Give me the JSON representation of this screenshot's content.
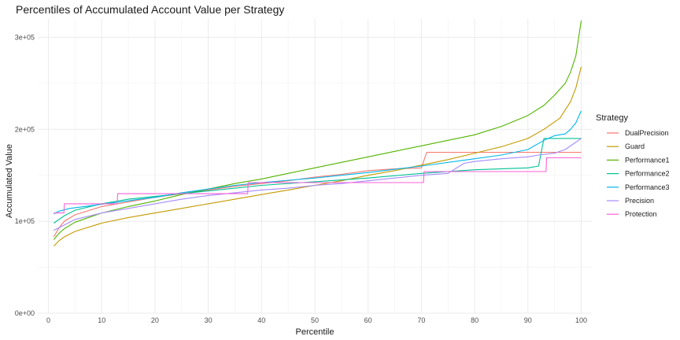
{
  "chart_data": {
    "type": "line",
    "title": "Percentiles of Accumulated Account Value per Strategy",
    "xlabel": "Percentile",
    "ylabel": "Accumulated Value",
    "xlim": [
      -2,
      102
    ],
    "ylim": [
      0,
      320000
    ],
    "x_ticks": [
      0,
      10,
      20,
      30,
      40,
      50,
      60,
      70,
      80,
      90,
      100
    ],
    "x_tick_labels": [
      "0",
      "10",
      "20",
      "30",
      "40",
      "50",
      "60",
      "70",
      "80",
      "90",
      "100"
    ],
    "y_ticks": [
      0,
      100000,
      200000,
      300000
    ],
    "y_tick_labels": [
      "0e+00",
      "1e+05",
      "2e+05",
      "3e+05"
    ],
    "grid": true,
    "legend": {
      "title": "Strategy",
      "position": "right"
    },
    "series": [
      {
        "name": "DualPrecision",
        "color": "#F8766D",
        "x": [
          1,
          2,
          3,
          5,
          10,
          15,
          20,
          25,
          30,
          35,
          40,
          45,
          50,
          55,
          60,
          65,
          70,
          71,
          80,
          90,
          100
        ],
        "y": [
          83000,
          93000,
          100000,
          107000,
          116000,
          121000,
          126000,
          130000,
          134000,
          138000,
          141000,
          144000,
          148000,
          151000,
          155000,
          157000,
          158000,
          175000,
          175000,
          175000,
          175000
        ]
      },
      {
        "name": "Guard",
        "color": "#C49A00",
        "x": [
          1,
          2,
          3,
          5,
          10,
          15,
          20,
          25,
          30,
          35,
          40,
          45,
          50,
          55,
          60,
          65,
          70,
          75,
          80,
          85,
          90,
          93,
          96,
          98,
          99,
          100
        ],
        "y": [
          73000,
          79000,
          83000,
          89000,
          98000,
          104000,
          109000,
          114000,
          119000,
          124000,
          129000,
          134000,
          139000,
          144000,
          150000,
          155000,
          161000,
          167000,
          174000,
          181000,
          190000,
          200000,
          212000,
          230000,
          245000,
          268000
        ]
      },
      {
        "name": "Performance1",
        "color": "#53B400",
        "x": [
          1,
          2,
          3,
          5,
          10,
          15,
          20,
          25,
          30,
          35,
          40,
          45,
          50,
          55,
          60,
          65,
          70,
          75,
          80,
          85,
          90,
          93,
          95,
          97,
          98,
          99,
          100
        ],
        "y": [
          80000,
          87000,
          92000,
          99000,
          109000,
          116000,
          122000,
          129000,
          135000,
          141000,
          146000,
          152000,
          158000,
          164000,
          170000,
          176000,
          182000,
          188000,
          194000,
          203000,
          215000,
          226000,
          237000,
          250000,
          262000,
          280000,
          318000
        ]
      },
      {
        "name": "Performance2",
        "color": "#00C094",
        "x": [
          1,
          3,
          5,
          10,
          15,
          20,
          25,
          30,
          35,
          40,
          50,
          60,
          70,
          80,
          90,
          92,
          93,
          94,
          100
        ],
        "y": [
          98000,
          106000,
          112000,
          119000,
          124000,
          127000,
          130000,
          133000,
          136000,
          139000,
          143000,
          147000,
          152000,
          156000,
          158000,
          160000,
          190000,
          190000,
          190000
        ]
      },
      {
        "name": "Performance3",
        "color": "#00B6EB",
        "x": [
          1,
          2,
          4,
          8,
          12,
          16,
          20,
          25,
          30,
          35,
          40,
          50,
          60,
          70,
          80,
          85,
          90,
          93,
          95,
          97,
          98,
          99,
          100
        ],
        "y": [
          108000,
          111000,
          114000,
          117000,
          120000,
          123000,
          126000,
          131000,
          135000,
          139000,
          142000,
          147000,
          153000,
          160000,
          168000,
          172000,
          178000,
          188000,
          193000,
          195000,
          200000,
          207000,
          220000
        ]
      },
      {
        "name": "Precision",
        "color": "#A58AFF",
        "x": [
          1,
          5,
          10,
          15,
          20,
          25,
          30,
          35,
          40,
          45,
          50,
          55,
          60,
          65,
          70,
          75,
          78,
          80,
          85,
          90,
          92,
          95,
          97,
          100
        ],
        "y": [
          90000,
          102000,
          109000,
          114000,
          119000,
          124000,
          128000,
          131000,
          134000,
          136000,
          139000,
          141000,
          144000,
          147000,
          150000,
          152000,
          163000,
          165000,
          168000,
          170000,
          172000,
          174000,
          178000,
          190000
        ]
      },
      {
        "name": "Protection",
        "color": "#FB61D7",
        "x": [
          1,
          2.9,
          3,
          12.9,
          13,
          37.4,
          37.5,
          70.4,
          70.5,
          93.4,
          93.5,
          100
        ],
        "y": [
          109000,
          109000,
          119000,
          119000,
          130000,
          130000,
          142000,
          142000,
          154000,
          154000,
          169000,
          169000
        ]
      }
    ]
  }
}
